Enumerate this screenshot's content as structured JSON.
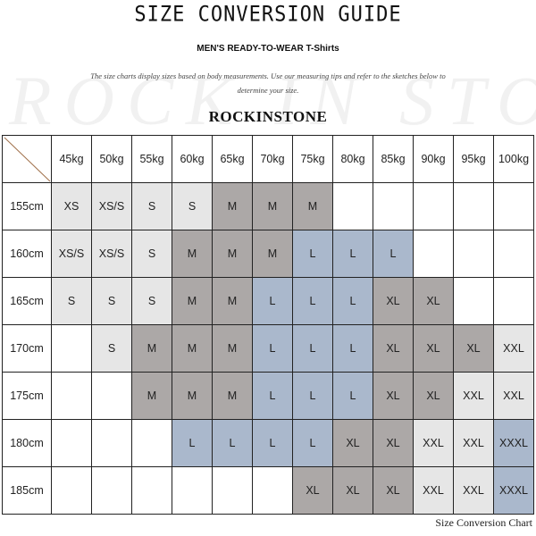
{
  "title": "SIZE CONVERSION GUIDE",
  "subtitle": "MEN'S READY-TO-WEAR T-Shirts",
  "description": "The size charts display sizes based on body measurements. Use our measuring tips and refer to the sketches below to determine your size.",
  "watermark": "ROCKINSTONE",
  "brand": "ROCKINSTONE",
  "colors": {
    "light": "#e6e6e6",
    "dark": "#aca8a7",
    "blue": "#aab8cc",
    "diagonal": "#a0704a"
  },
  "table": {
    "weights": [
      "45kg",
      "50kg",
      "55kg",
      "60kg",
      "65kg",
      "70kg",
      "75kg",
      "80kg",
      "85kg",
      "90kg",
      "95kg",
      "100kg"
    ],
    "rows": [
      {
        "height": "155cm",
        "cells": [
          [
            "XS",
            "light"
          ],
          [
            "XS/S",
            "light"
          ],
          [
            "S",
            "light"
          ],
          [
            "S",
            "light"
          ],
          [
            "M",
            "dark"
          ],
          [
            "M",
            "dark"
          ],
          [
            "M",
            "dark"
          ],
          [
            "",
            "none"
          ],
          [
            "",
            "none"
          ],
          [
            "",
            "none"
          ],
          [
            "",
            "none"
          ],
          [
            "",
            "none"
          ]
        ]
      },
      {
        "height": "160cm",
        "cells": [
          [
            "XS/S",
            "light"
          ],
          [
            "XS/S",
            "light"
          ],
          [
            "S",
            "light"
          ],
          [
            "M",
            "dark"
          ],
          [
            "M",
            "dark"
          ],
          [
            "M",
            "dark"
          ],
          [
            "L",
            "blue"
          ],
          [
            "L",
            "blue"
          ],
          [
            "L",
            "blue"
          ],
          [
            "",
            "none"
          ],
          [
            "",
            "none"
          ],
          [
            "",
            "none"
          ]
        ]
      },
      {
        "height": "165cm",
        "cells": [
          [
            "S",
            "light"
          ],
          [
            "S",
            "light"
          ],
          [
            "S",
            "light"
          ],
          [
            "M",
            "dark"
          ],
          [
            "M",
            "dark"
          ],
          [
            "L",
            "blue"
          ],
          [
            "L",
            "blue"
          ],
          [
            "L",
            "blue"
          ],
          [
            "XL",
            "dark"
          ],
          [
            "XL",
            "dark"
          ],
          [
            "",
            "none"
          ],
          [
            "",
            "none"
          ]
        ]
      },
      {
        "height": "170cm",
        "cells": [
          [
            "",
            "none"
          ],
          [
            "S",
            "light"
          ],
          [
            "M",
            "dark"
          ],
          [
            "M",
            "dark"
          ],
          [
            "M",
            "dark"
          ],
          [
            "L",
            "blue"
          ],
          [
            "L",
            "blue"
          ],
          [
            "L",
            "blue"
          ],
          [
            "XL",
            "dark"
          ],
          [
            "XL",
            "dark"
          ],
          [
            "XL",
            "dark"
          ],
          [
            "XXL",
            "light"
          ]
        ]
      },
      {
        "height": "175cm",
        "cells": [
          [
            "",
            "none"
          ],
          [
            "",
            "none"
          ],
          [
            "M",
            "dark"
          ],
          [
            "M",
            "dark"
          ],
          [
            "M",
            "dark"
          ],
          [
            "L",
            "blue"
          ],
          [
            "L",
            "blue"
          ],
          [
            "L",
            "blue"
          ],
          [
            "XL",
            "dark"
          ],
          [
            "XL",
            "dark"
          ],
          [
            "XXL",
            "light"
          ],
          [
            "XXL",
            "light"
          ]
        ]
      },
      {
        "height": "180cm",
        "cells": [
          [
            "",
            "none"
          ],
          [
            "",
            "none"
          ],
          [
            "",
            "none"
          ],
          [
            "L",
            "blue"
          ],
          [
            "L",
            "blue"
          ],
          [
            "L",
            "blue"
          ],
          [
            "L",
            "blue"
          ],
          [
            "XL",
            "dark"
          ],
          [
            "XL",
            "dark"
          ],
          [
            "XXL",
            "light"
          ],
          [
            "XXL",
            "light"
          ],
          [
            "XXXL",
            "blue"
          ]
        ]
      },
      {
        "height": "185cm",
        "cells": [
          [
            "",
            "none"
          ],
          [
            "",
            "none"
          ],
          [
            "",
            "none"
          ],
          [
            "",
            "none"
          ],
          [
            "",
            "none"
          ],
          [
            "",
            "none"
          ],
          [
            "XL",
            "dark"
          ],
          [
            "XL",
            "dark"
          ],
          [
            "XL",
            "dark"
          ],
          [
            "XXL",
            "light"
          ],
          [
            "XXL",
            "light"
          ],
          [
            "XXXL",
            "blue"
          ]
        ]
      }
    ]
  },
  "footer": "Size Conversion Chart"
}
